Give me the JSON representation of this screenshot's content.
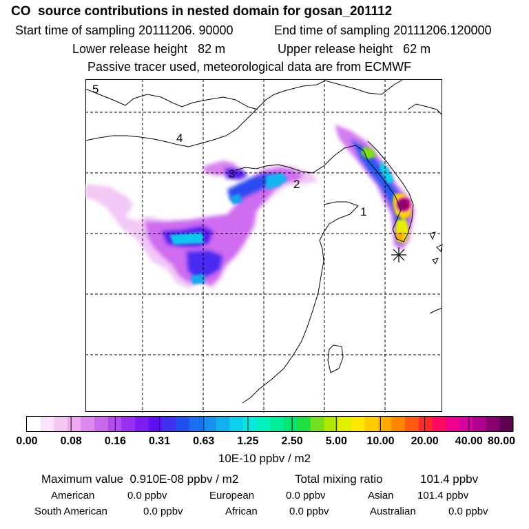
{
  "header": {
    "title": "CO  source contributions in nested domain for gosan_201112",
    "start_time": "Start time of sampling 20111206. 90000",
    "end_time": "End time of sampling 20111206.120000",
    "lower_height": "Lower release height   82 m",
    "upper_height": "Upper release height   62 m",
    "tracer_note": "Passive tracer used, meteorological data are from ECMWF"
  },
  "map": {
    "labels": [
      "1",
      "2",
      "3",
      "4",
      "5"
    ],
    "receptor_marker": "asterisk-icon"
  },
  "colorbar": {
    "ticks": [
      "0.00",
      "0.08",
      "0.16",
      "0.31",
      "0.63",
      "1.25",
      "2.50",
      "5.00",
      "10.00",
      "20.00",
      "40.00",
      "80.00"
    ],
    "unit": "10E-10 ppbv / m2",
    "colors": [
      "#ffffff",
      "#fbe3fb",
      "#f4c6f4",
      "#eda8f0",
      "#dd88ee",
      "#c96aee",
      "#b24cef",
      "#9a30f1",
      "#7d1cf1",
      "#5f10f2",
      "#4030f0",
      "#2250f0",
      "#1a6ef0",
      "#1890f0",
      "#12b0f0",
      "#0ed0ee",
      "#08e8e0",
      "#00f0c0",
      "#00ee9a",
      "#00e870",
      "#20e040",
      "#70e020",
      "#b0e800",
      "#e0f000",
      "#ffe800",
      "#ffcc00",
      "#ffa800",
      "#ff8400",
      "#ff5a10",
      "#ff2a2a",
      "#ff0a60",
      "#f00090",
      "#d800a0",
      "#b00090",
      "#880070",
      "#600050"
    ]
  },
  "stats": {
    "max_label": "Maximum value  0.910E-08 ppbv / m2",
    "total_label": "Total mixing ratio",
    "total_value": "101.4 ppbv",
    "regions": [
      {
        "name": "American",
        "value": "0.0 ppbv"
      },
      {
        "name": "European",
        "value": "0.0 ppbv"
      },
      {
        "name": "Asian",
        "value": "101.4 ppbv"
      },
      {
        "name": "South American",
        "value": "0.0 ppbv"
      },
      {
        "name": "African",
        "value": "0.0 ppbv"
      },
      {
        "name": "Australian",
        "value": "0.0 ppbv"
      }
    ]
  }
}
